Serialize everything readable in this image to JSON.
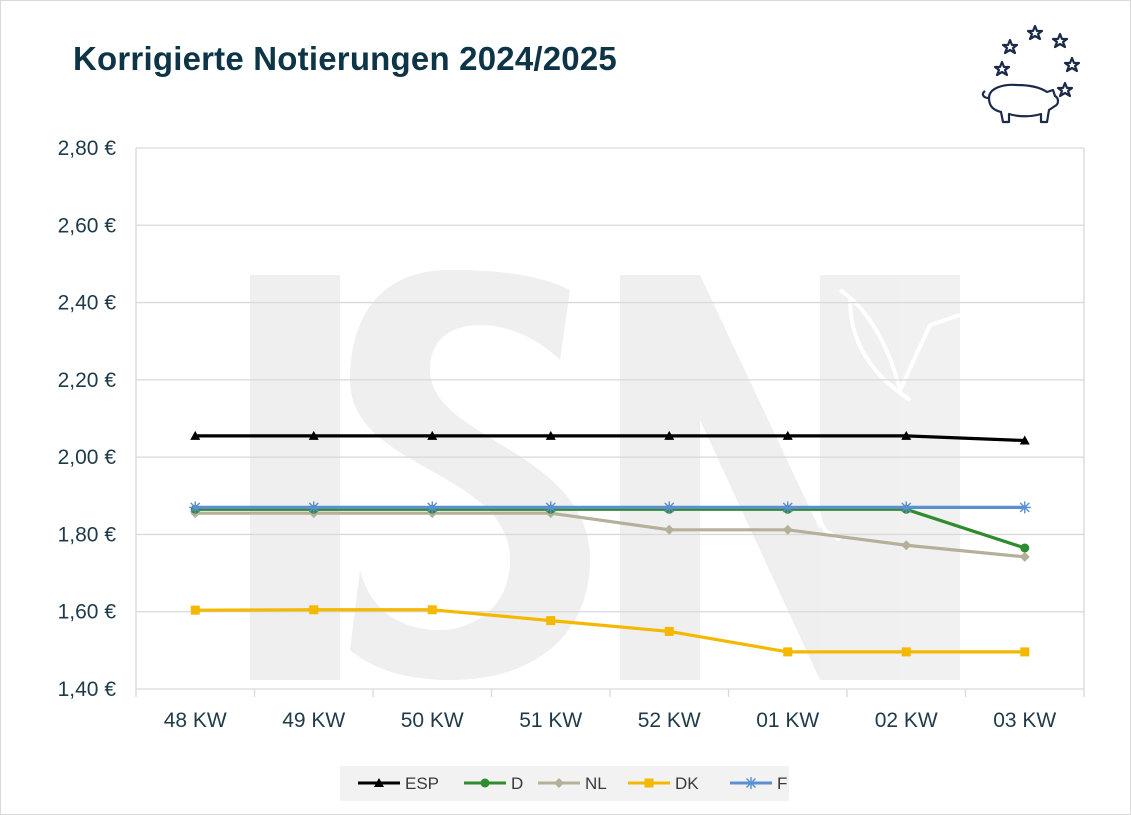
{
  "title": "Korrigierte Notierungen 2024/2025",
  "chart_data": {
    "type": "line",
    "title": "Korrigierte Notierungen 2024/2025",
    "categories": [
      "48 KW",
      "49 KW",
      "50 KW",
      "51 KW",
      "52 KW",
      "01 KW",
      "02 KW",
      "03 KW"
    ],
    "ylim": [
      1.4,
      2.8
    ],
    "yticks": [
      "1,40 €",
      "1,60 €",
      "1,80 €",
      "2,00 €",
      "2,20 €",
      "2,40 €",
      "2,60 €",
      "2,80 €"
    ],
    "grid": true,
    "legend_position": "bottom",
    "series": [
      {
        "name": "ESP",
        "color": "#000000",
        "marker": "triangle",
        "values": [
          2.055,
          2.055,
          2.055,
          2.055,
          2.055,
          2.055,
          2.055,
          2.043
        ]
      },
      {
        "name": "D",
        "color": "#2e8b2e",
        "marker": "circle",
        "values": [
          1.865,
          1.865,
          1.865,
          1.865,
          1.865,
          1.865,
          1.865,
          1.765
        ]
      },
      {
        "name": "NL",
        "color": "#b5b09a",
        "marker": "diamond",
        "values": [
          1.855,
          1.855,
          1.855,
          1.855,
          1.812,
          1.812,
          1.772,
          1.742
        ]
      },
      {
        "name": "DK",
        "color": "#f5b800",
        "marker": "square",
        "values": [
          1.604,
          1.605,
          1.605,
          1.577,
          1.549,
          1.496,
          1.496,
          1.496
        ]
      },
      {
        "name": "F",
        "color": "#5b8fd0",
        "marker": "asterisk",
        "values": [
          1.87,
          1.87,
          1.87,
          1.87,
          1.87,
          1.87,
          1.87,
          1.87
        ]
      }
    ]
  },
  "colors": {
    "title": "#0d3547",
    "grid": "#d9d9d9",
    "logo": "#1c2a4a"
  },
  "logo": {
    "icon": "pig-with-stars-icon"
  },
  "watermark": {
    "text": "ISN",
    "icon": "isn-watermark"
  }
}
